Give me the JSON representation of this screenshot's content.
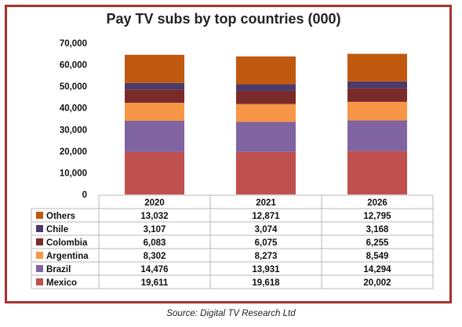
{
  "source": "Source: Digital TV Research Ltd",
  "chart_data": {
    "type": "bar",
    "stacked": true,
    "title": "Pay TV subs by top countries (000)",
    "categories": [
      "2020",
      "2021",
      "2026"
    ],
    "ylim": [
      0,
      70000
    ],
    "yticks": [
      "0",
      "10,000",
      "20,000",
      "30,000",
      "40,000",
      "50,000",
      "60,000",
      "70,000"
    ],
    "grid": false,
    "legend": "data-table",
    "series": [
      {
        "name": "Mexico",
        "color": "#c0504d",
        "values": [
          19611,
          19618,
          20002
        ],
        "labels": [
          "19,611",
          "19,618",
          "20,002"
        ]
      },
      {
        "name": "Brazil",
        "color": "#8064a2",
        "values": [
          14476,
          13931,
          14294
        ],
        "labels": [
          "14,476",
          "13,931",
          "14,294"
        ]
      },
      {
        "name": "Argentina",
        "color": "#f79646",
        "values": [
          8302,
          8273,
          8549
        ],
        "labels": [
          "8,302",
          "8,273",
          "8,549"
        ]
      },
      {
        "name": "Colombia",
        "color": "#7b2a2a",
        "values": [
          6083,
          6075,
          6255
        ],
        "labels": [
          "6,083",
          "6,075",
          "6,255"
        ]
      },
      {
        "name": "Chile",
        "color": "#4b3b6b",
        "values": [
          3107,
          3074,
          3168
        ],
        "labels": [
          "3,107",
          "3,074",
          "3,168"
        ]
      },
      {
        "name": "Others",
        "color": "#c0580f",
        "values": [
          13032,
          12871,
          12795
        ],
        "labels": [
          "13,032",
          "12,871",
          "12,795"
        ]
      }
    ]
  }
}
